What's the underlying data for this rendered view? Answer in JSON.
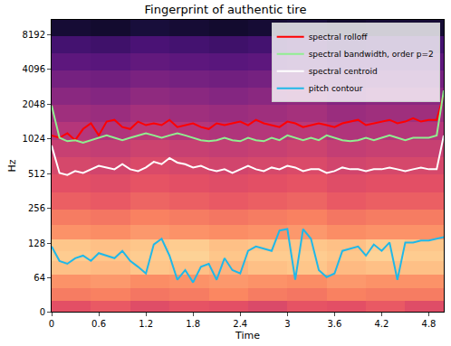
{
  "chart_data": {
    "type": "line",
    "title": "Fingerprint of authentic tire",
    "x_label": "Time",
    "y_label": "Hz",
    "log": "y",
    "legend": "upper right",
    "grid": false,
    "xlim": [
      0,
      4.99
    ],
    "xticks": [
      0,
      0.6,
      1.2,
      1.8,
      2.4,
      3,
      3.6,
      4.2,
      4.8
    ],
    "ylim": [
      0,
      11025
    ],
    "yticks": [
      0,
      64,
      128,
      256,
      512,
      1024,
      2048,
      4096,
      8192
    ],
    "x": [
      0,
      0.1,
      0.2,
      0.3,
      0.4,
      0.5,
      0.6,
      0.7,
      0.8,
      0.9,
      1,
      1.1,
      1.2,
      1.3,
      1.4,
      1.5,
      1.6,
      1.7,
      1.8,
      1.9,
      2,
      2.1,
      2.2,
      2.3,
      2.4,
      2.5,
      2.6,
      2.7,
      2.8,
      2.9,
      3,
      3.1,
      3.2,
      3.3,
      3.4,
      3.5,
      3.6,
      3.7,
      3.8,
      3.9,
      4,
      4.1,
      4.2,
      4.3,
      4.4,
      4.5,
      4.6,
      4.7,
      4.8,
      4.9,
      4.99
    ],
    "series": [
      {
        "name": "spectral rolloff",
        "color": "#ff0000",
        "values": [
          1100,
          1050,
          1150,
          1000,
          1250,
          1400,
          1100,
          1450,
          1500,
          1300,
          1250,
          1450,
          1350,
          1400,
          1350,
          1500,
          1300,
          1350,
          1400,
          1300,
          1250,
          1400,
          1350,
          1400,
          1450,
          1350,
          1500,
          1400,
          1350,
          1300,
          1450,
          1400,
          1300,
          1350,
          1400,
          1350,
          1300,
          1400,
          1450,
          1500,
          1350,
          1400,
          1450,
          1500,
          1400,
          1450,
          1550,
          1450,
          1500,
          1500,
          2500
        ]
      },
      {
        "name": "spectral bandwidth, order p=2",
        "color": "#90ee90",
        "values": [
          2000,
          1050,
          980,
          1000,
          950,
          1000,
          1050,
          1100,
          1050,
          1000,
          1050,
          1100,
          1150,
          1100,
          1050,
          1100,
          1150,
          1100,
          1050,
          1000,
          980,
          1000,
          1050,
          1000,
          980,
          1050,
          1000,
          980,
          1050,
          1000,
          1100,
          1050,
          1000,
          1050,
          1000,
          1100,
          1050,
          1000,
          980,
          1000,
          1050,
          1000,
          1050,
          1100,
          1050,
          1000,
          1050,
          1050,
          1050,
          1100,
          2700
        ]
      },
      {
        "name": "spectral centroid",
        "color": "#ffffff",
        "values": [
          900,
          520,
          500,
          540,
          520,
          560,
          600,
          580,
          560,
          620,
          560,
          540,
          580,
          650,
          620,
          700,
          640,
          620,
          580,
          600,
          560,
          540,
          560,
          520,
          560,
          600,
          560,
          540,
          580,
          560,
          600,
          580,
          540,
          560,
          560,
          520,
          540,
          580,
          560,
          560,
          540,
          560,
          560,
          580,
          560,
          540,
          560,
          580,
          560,
          560,
          1100
        ]
      },
      {
        "name": "pitch contour",
        "color": "#1fb8e8",
        "values": [
          120,
          90,
          85,
          95,
          100,
          90,
          105,
          100,
          95,
          110,
          90,
          80,
          70,
          125,
          140,
          100,
          60,
          75,
          55,
          80,
          85,
          60,
          95,
          75,
          70,
          110,
          120,
          115,
          110,
          165,
          170,
          60,
          170,
          140,
          75,
          65,
          70,
          110,
          115,
          120,
          100,
          125,
          110,
          130,
          60,
          130,
          130,
          135,
          135,
          140,
          145
        ]
      }
    ],
    "spectrogram": {
      "x": [
        0.25,
        0.75,
        1.25,
        1.75,
        2.25,
        2.75,
        3.25,
        3.75,
        4.25,
        4.75
      ],
      "y": [
        10,
        32,
        55,
        80,
        100,
        120,
        160,
        210,
        300,
        420,
        600,
        850,
        1200,
        1700,
        2400,
        3400,
        4800,
        6800,
        9500
      ],
      "zlim": [
        -80,
        0
      ],
      "z": [
        [
          -30,
          -28,
          -31,
          -29,
          -30,
          -32,
          -29,
          -30,
          -28,
          -31
        ],
        [
          -22,
          -21,
          -23,
          -22,
          -20,
          -22,
          -23,
          -21,
          -22,
          -22
        ],
        [
          -18,
          -17,
          -19,
          -18,
          -17,
          -18,
          -19,
          -17,
          -18,
          -18
        ],
        [
          -10,
          -11,
          -9,
          -10,
          -12,
          -10,
          -9,
          -11,
          -10,
          -10
        ],
        [
          -8,
          -9,
          -8,
          -7,
          -9,
          -8,
          -8,
          -9,
          -7,
          -8
        ],
        [
          -9,
          -10,
          -9,
          -8,
          -10,
          -9,
          -9,
          -10,
          -8,
          -9
        ],
        [
          -18,
          -19,
          -17,
          -18,
          -19,
          -18,
          -17,
          -19,
          -18,
          -18
        ],
        [
          -22,
          -23,
          -21,
          -22,
          -23,
          -22,
          -21,
          -23,
          -22,
          -22
        ],
        [
          -27,
          -28,
          -26,
          -27,
          -28,
          -27,
          -26,
          -28,
          -27,
          -27
        ],
        [
          -30,
          -31,
          -29,
          -30,
          -31,
          -30,
          -29,
          -31,
          -30,
          -30
        ],
        [
          -33,
          -34,
          -32,
          -33,
          -34,
          -33,
          -32,
          -34,
          -33,
          -33
        ],
        [
          -36,
          -37,
          -35,
          -36,
          -37,
          -36,
          -35,
          -37,
          -36,
          -36
        ],
        [
          -40,
          -41,
          -39,
          -40,
          -41,
          -40,
          -39,
          -41,
          -40,
          -40
        ],
        [
          -44,
          -45,
          -43,
          -44,
          -45,
          -44,
          -43,
          -45,
          -44,
          -44
        ],
        [
          -48,
          -49,
          -47,
          -48,
          -49,
          -48,
          -47,
          -49,
          -48,
          -48
        ],
        [
          -52,
          -53,
          -51,
          -52,
          -53,
          -52,
          -51,
          -53,
          -52,
          -52
        ],
        [
          -57,
          -58,
          -56,
          -57,
          -58,
          -57,
          -56,
          -58,
          -57,
          -57
        ],
        [
          -62,
          -63,
          -61,
          -62,
          -63,
          -62,
          -61,
          -63,
          -62,
          -62
        ],
        [
          -72,
          -73,
          -71,
          -72,
          -73,
          -72,
          -71,
          -73,
          -72,
          -72
        ]
      ]
    }
  }
}
